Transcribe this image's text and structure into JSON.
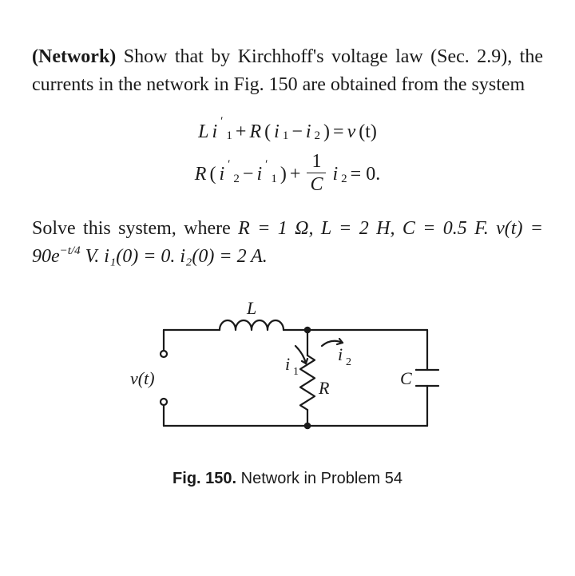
{
  "text": {
    "p1_a": "(Network)",
    "p1_b": " Show that by Kirchhoff's voltage law (Sec. 2.9), the currents in the network in Fig. 150 are obtained from the system",
    "p2": "Solve this system, where ",
    "p2_vals": "R = 1 Ω, L = 2 H, C = 0.5 F. ",
    "p2_v": "v(t) = 90e",
    "p2_exp": "−t/4",
    "p2_tail": " V. i₁(0) = 0. i₂(0) = 2 A."
  },
  "eq": {
    "e1_L": "L",
    "e1_i": "i",
    "e1_prime": "′",
    "e1_s1": "1",
    "e1_plus": " + ",
    "e1_R": "R",
    "e1_lp": "(",
    "e1_i1": "i",
    "e1_sub1": "1",
    "e1_minus": " − ",
    "e1_i2": "i",
    "e1_sub2": "2",
    "e1_rp": ")",
    "e1_eq": " = ",
    "e1_v": "v",
    "e1_t": "(t)",
    "e2_R": "R",
    "e2_lp": "(",
    "e2_i2p": "i",
    "e2_s2": "2",
    "e2_pr": "′",
    "e2_minus": " − ",
    "e2_i1p": "i",
    "e2_s1": "1",
    "e2_pr1": "′",
    "e2_rp": ")",
    "e2_plus": " + ",
    "e2_num": "1",
    "e2_den": "C",
    "e2_i2": " i",
    "e2_sub2": "2",
    "e2_eq": " = 0."
  },
  "circuit": {
    "stroke": "#1a1a1a",
    "stroke_width": 2.2,
    "labels": {
      "L": "L",
      "i1": "i",
      "i1s": "1",
      "i2": "i",
      "i2s": "2",
      "R": "R",
      "C": "C",
      "vt": "v(t)"
    }
  },
  "caption": {
    "fignum": "Fig. 150.",
    "text": "   Network in Problem 54"
  }
}
